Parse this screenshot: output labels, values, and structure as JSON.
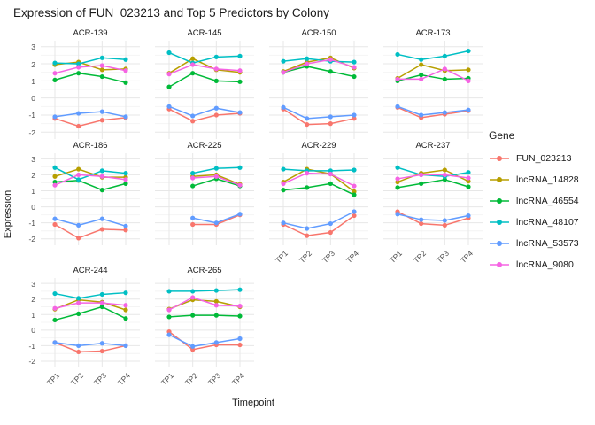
{
  "title": "Expression of FUN_023213 and Top 5 Predictors by Colony",
  "axes": {
    "x_label": "Timepoint",
    "y_label": "Expression",
    "x_ticks": [
      "TP1",
      "TP2",
      "TP3",
      "TP4"
    ],
    "y_ticks": [
      3,
      2,
      1,
      0,
      -1,
      -2
    ]
  },
  "legend": {
    "title": "Gene"
  },
  "chart_data": {
    "type": "line",
    "facet_by": "Colony",
    "categories": [
      "TP1",
      "TP2",
      "TP3",
      "TP4"
    ],
    "ylim": [
      -2.4,
      3.35
    ],
    "grid": true,
    "legend_position": "right",
    "genes": [
      {
        "name": "FUN_023213",
        "color": "#F8766D"
      },
      {
        "name": "lncRNA_14828",
        "color": "#B79F00"
      },
      {
        "name": "lncRNA_46554",
        "color": "#00BA38"
      },
      {
        "name": "lncRNA_48107",
        "color": "#00BFC4"
      },
      {
        "name": "lncRNA_53573",
        "color": "#619CFF"
      },
      {
        "name": "lncRNA_9080",
        "color": "#F564E3"
      }
    ],
    "facets": [
      {
        "name": "ACR-139",
        "values": [
          [
            -1.2,
            -1.65,
            -1.3,
            -1.15
          ],
          [
            1.95,
            2.1,
            1.65,
            1.7
          ],
          [
            1.05,
            1.45,
            1.25,
            0.9
          ],
          [
            2.05,
            2.0,
            2.35,
            2.25
          ],
          [
            -1.1,
            -0.9,
            -0.8,
            -1.1
          ],
          [
            1.45,
            1.8,
            1.9,
            1.6
          ]
        ]
      },
      {
        "name": "ACR-145",
        "values": [
          [
            -0.65,
            -1.35,
            -1.0,
            -0.9
          ],
          [
            1.45,
            2.3,
            1.65,
            1.5
          ],
          [
            0.65,
            1.45,
            1.0,
            0.95
          ],
          [
            2.65,
            2.05,
            2.4,
            2.45
          ],
          [
            -0.5,
            -1.05,
            -0.6,
            -0.85
          ],
          [
            1.4,
            1.95,
            1.7,
            1.6
          ]
        ]
      },
      {
        "name": "ACR-150",
        "values": [
          [
            -0.65,
            -1.55,
            -1.5,
            -1.2
          ],
          [
            1.55,
            2.1,
            2.35,
            1.75
          ],
          [
            1.5,
            1.85,
            1.55,
            1.25
          ],
          [
            2.15,
            2.3,
            2.15,
            2.1
          ],
          [
            -0.55,
            -1.2,
            -1.1,
            -1.0
          ],
          [
            1.5,
            2.0,
            2.25,
            1.8
          ]
        ]
      },
      {
        "name": "ACR-173",
        "values": [
          [
            -0.55,
            -1.15,
            -0.95,
            -0.75
          ],
          [
            1.15,
            1.95,
            1.6,
            1.65
          ],
          [
            1.0,
            1.35,
            1.1,
            1.15
          ],
          [
            2.55,
            2.25,
            2.45,
            2.75
          ],
          [
            -0.5,
            -1.0,
            -0.85,
            -0.7
          ],
          [
            1.1,
            1.1,
            1.7,
            1.0
          ]
        ]
      },
      {
        "name": "ACR-186",
        "values": [
          [
            -1.1,
            -1.95,
            -1.4,
            -1.45
          ],
          [
            1.9,
            2.35,
            1.85,
            1.85
          ],
          [
            1.55,
            1.65,
            1.05,
            1.45
          ],
          [
            2.45,
            1.7,
            2.25,
            2.1
          ],
          [
            -0.75,
            -1.15,
            -0.75,
            -1.2
          ],
          [
            1.35,
            2.0,
            1.9,
            1.7
          ]
        ]
      },
      {
        "name": "ACR-225",
        "values": [
          [
            null,
            -1.1,
            -1.1,
            -0.5
          ],
          [
            null,
            1.9,
            2.0,
            1.4
          ],
          [
            null,
            1.3,
            1.75,
            1.3
          ],
          [
            null,
            2.1,
            2.4,
            2.45
          ],
          [
            null,
            -0.7,
            -1.0,
            -0.45
          ],
          [
            null,
            1.8,
            1.9,
            1.35
          ]
        ]
      },
      {
        "name": "ACR-229",
        "values": [
          [
            -1.1,
            -1.8,
            -1.6,
            -0.55
          ],
          [
            1.55,
            2.35,
            2.05,
            0.95
          ],
          [
            1.05,
            1.2,
            1.45,
            0.75
          ],
          [
            2.35,
            2.25,
            2.25,
            2.3
          ],
          [
            -1.0,
            -1.35,
            -1.05,
            -0.3
          ],
          [
            1.45,
            2.1,
            2.05,
            1.3
          ]
        ]
      },
      {
        "name": "ACR-237",
        "values": [
          [
            -0.3,
            -1.05,
            -1.15,
            -0.7
          ],
          [
            1.55,
            2.1,
            2.3,
            1.6
          ],
          [
            1.2,
            1.45,
            1.7,
            1.25
          ],
          [
            2.45,
            2.0,
            1.9,
            2.15
          ],
          [
            -0.45,
            -0.8,
            -0.85,
            -0.55
          ],
          [
            1.75,
            2.0,
            2.0,
            1.8
          ]
        ]
      },
      {
        "name": "ACR-244",
        "values": [
          [
            -0.8,
            -1.4,
            -1.35,
            -1.0
          ],
          [
            1.35,
            1.95,
            1.8,
            1.3
          ],
          [
            0.65,
            1.05,
            1.5,
            0.75
          ],
          [
            2.35,
            2.05,
            2.3,
            2.4
          ],
          [
            -0.8,
            -1.0,
            -0.85,
            -1.0
          ],
          [
            1.4,
            1.75,
            1.75,
            1.6
          ]
        ]
      },
      {
        "name": "ACR-265",
        "values": [
          [
            -0.1,
            -1.25,
            -0.95,
            -0.95
          ],
          [
            1.35,
            1.95,
            1.85,
            1.5
          ],
          [
            0.85,
            0.95,
            0.95,
            0.9
          ],
          [
            2.5,
            2.5,
            2.55,
            2.6
          ],
          [
            -0.3,
            -1.05,
            -0.8,
            -0.55
          ],
          [
            1.3,
            2.1,
            1.6,
            1.55
          ]
        ]
      }
    ]
  }
}
